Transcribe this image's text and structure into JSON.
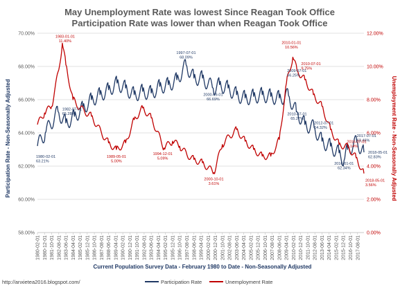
{
  "titles": {
    "line1": "May Unemployment Rate was lowest Since Reagan Took Office",
    "line2": "Participation Rate was lower than when Reagan Took Office"
  },
  "axes": {
    "left_title": "Participation Rate - Non-Seasonally Adjusted",
    "right_title": "Unemployment Rate - Non-Seasonally Adjusted",
    "x_title": "Current Population Survey Data - February 1980 to Date - Non-Seasonally Adjusted"
  },
  "legend": {
    "participation": "Participation Rate",
    "unemployment": "Unemployment Rate"
  },
  "source": "http://anxietea2016.blogspot.com/",
  "colors": {
    "participation": "#1f3864",
    "unemployment": "#c00000",
    "text": "#595959",
    "grid": "#d9d9d9"
  },
  "chart_data": {
    "type": "line",
    "title": "May Unemployment Rate was lowest Since Reagan Took Office / Participation Rate was lower than when Reagan Took Office",
    "xlabel": "Current Population Survey Data - February 1980 to Date - Non-Seasonally Adjusted",
    "ylabel_left": "Participation Rate - Non-Seasonally Adjusted",
    "ylabel_right": "Unemployment Rate - Non-Seasonally Adjusted",
    "ylim_left": [
      58,
      70
    ],
    "ylim_right": [
      0,
      12
    ],
    "left_ticks": [
      "58.00%",
      "60.00%",
      "62.00%",
      "64.00%",
      "66.00%",
      "68.00%",
      "70.00%"
    ],
    "right_ticks": [
      "0.00%",
      "2.00%",
      "4.00%",
      "6.00%",
      "8.00%",
      "10.00%",
      "12.00%"
    ],
    "x_ticks": [
      "1980-02-01",
      "1980-12-01",
      "1981-10-01",
      "1982-08-01",
      "1983-06-01",
      "1984-04-01",
      "1985-02-01",
      "1985-12-01",
      "1986-10-01",
      "1987-08-01",
      "1988-06-01",
      "1989-04-01",
      "1990-02-01",
      "1990-12-01",
      "1991-10-01",
      "1992-08-01",
      "1993-06-01",
      "1994-04-01",
      "1995-02-01",
      "1995-12-01",
      "1996-10-01",
      "1997-08-01",
      "1998-06-01",
      "1999-04-01",
      "2000-02-01",
      "2000-12-01",
      "2001-10-01",
      "2002-08-01",
      "2003-06-01",
      "2004-04-01",
      "2005-02-01",
      "2005-12-01",
      "2006-10-01",
      "2007-08-01",
      "2008-06-01",
      "2009-04-01",
      "2010-02-01",
      "2010-12-01",
      "2011-10-01",
      "2012-08-01",
      "2013-06-01",
      "2014-04-01",
      "2015-02-01",
      "2015-12-01",
      "2016-10-01",
      "2017-08-01"
    ],
    "series": [
      {
        "name": "Participation Rate",
        "axis": "left",
        "x": [
          "1980-02-01",
          "1981-01-01",
          "1982-07-01",
          "1983-06-01",
          "1984-06-01",
          "1985-06-01",
          "1986-06-01",
          "1987-06-01",
          "1988-06-01",
          "1989-06-01",
          "1990-06-01",
          "1991-06-01",
          "1992-06-01",
          "1993-06-01",
          "1994-06-01",
          "1995-06-01",
          "1996-06-01",
          "1997-07-01",
          "1998-06-01",
          "1999-06-01",
          "2000-09-01",
          "2001-06-01",
          "2002-06-01",
          "2003-06-01",
          "2004-06-01",
          "2005-06-01",
          "2006-06-01",
          "2007-06-01",
          "2008-06-01",
          "2009-07-01",
          "2010-06-01",
          "2010-07-01",
          "2011-06-01",
          "2012-07-01",
          "2013-06-01",
          "2014-06-01",
          "2015-06-01",
          "2016-01-01",
          "2016-06-01",
          "2017-07-01",
          "2018-05-01"
        ],
        "values": [
          63.21,
          64.0,
          65.28,
          64.6,
          65.0,
          65.5,
          66.0,
          66.3,
          66.6,
          67.0,
          66.7,
          66.3,
          66.5,
          66.4,
          66.8,
          66.9,
          67.2,
          68.09,
          67.3,
          67.3,
          66.69,
          66.9,
          66.7,
          66.3,
          66.1,
          66.2,
          66.3,
          66.2,
          66.1,
          66.25,
          65.27,
          65.27,
          64.5,
          64.32,
          63.5,
          63.2,
          62.8,
          62.34,
          63.0,
          63.46,
          62.83
        ]
      },
      {
        "name": "Unemployment Rate",
        "axis": "right",
        "x": [
          "1980-02-01",
          "1980-12-01",
          "1981-10-01",
          "1982-08-01",
          "1983-01-01",
          "1983-06-01",
          "1984-04-01",
          "1985-02-01",
          "1986-06-01",
          "1987-08-01",
          "1988-06-01",
          "1989-05-01",
          "1990-06-01",
          "1991-06-01",
          "1992-06-01",
          "1993-06-01",
          "1994-12-01",
          "1995-12-01",
          "1996-10-01",
          "1997-08-01",
          "1998-06-01",
          "1999-06-01",
          "2000-10-01",
          "2001-10-01",
          "2002-08-01",
          "2003-06-01",
          "2004-06-01",
          "2005-06-01",
          "2006-06-01",
          "2007-06-01",
          "2008-06-01",
          "2009-04-01",
          "2010-01-01",
          "2010-07-01",
          "2011-06-01",
          "2012-06-01",
          "2013-06-01",
          "2014-06-01",
          "2015-06-01",
          "2016-07-01",
          "2017-06-01",
          "2018-05-01"
        ],
        "values": [
          6.5,
          7.2,
          7.6,
          9.8,
          11.4,
          10.1,
          8.0,
          7.5,
          7.0,
          6.0,
          5.4,
          5.0,
          5.4,
          6.8,
          7.5,
          6.9,
          5.09,
          5.5,
          5.2,
          4.7,
          4.4,
          4.2,
          3.61,
          5.3,
          5.8,
          6.2,
          5.5,
          5.0,
          4.6,
          4.6,
          5.6,
          9.0,
          10.56,
          9.75,
          9.2,
          8.3,
          7.6,
          6.2,
          5.3,
          5.14,
          4.5,
          3.56
        ]
      }
    ],
    "annotations": [
      {
        "series": "Participation Rate",
        "date": "1980-02-01",
        "value": "63.21%"
      },
      {
        "series": "Participation Rate",
        "date": "1982-07-01",
        "value": "65.28%"
      },
      {
        "series": "Participation Rate",
        "date": "1997-07-01",
        "value": "68.09%"
      },
      {
        "series": "Participation Rate",
        "date": "2000-09-01",
        "value": "66.69%"
      },
      {
        "series": "Participation Rate",
        "date": "2009-07-01",
        "value": "66.25%"
      },
      {
        "series": "Participation Rate",
        "date": "2010-07-01",
        "value": "65.27%"
      },
      {
        "series": "Participation Rate",
        "date": "2012-07-01",
        "value": "64.32%"
      },
      {
        "series": "Participation Rate",
        "date": "2016-01-01",
        "value": "62.34%"
      },
      {
        "series": "Participation Rate",
        "date": "2017-07-01",
        "value": "63.46%"
      },
      {
        "series": "Participation Rate",
        "date": "2018-05-01",
        "value": "62.83%"
      },
      {
        "series": "Unemployment Rate",
        "date": "1983-01-01",
        "value": "11.40%"
      },
      {
        "series": "Unemployment Rate",
        "date": "1989-05-01",
        "value": "5.00%"
      },
      {
        "series": "Unemployment Rate",
        "date": "1994-12-01",
        "value": "5.09%"
      },
      {
        "series": "Unemployment Rate",
        "date": "2000-10-01",
        "value": "3.61%"
      },
      {
        "series": "Unemployment Rate",
        "date": "2010-01-01",
        "value": "10.56%"
      },
      {
        "series": "Unemployment Rate",
        "date": "2010-07-01",
        "value": "9.75%"
      },
      {
        "series": "Unemployment Rate",
        "date": "2016-07-01",
        "value": "5.14%"
      },
      {
        "series": "Unemployment Rate",
        "date": "2018-05-01",
        "value": "3.56%"
      }
    ],
    "grid": true,
    "legend_position": "bottom-center"
  }
}
